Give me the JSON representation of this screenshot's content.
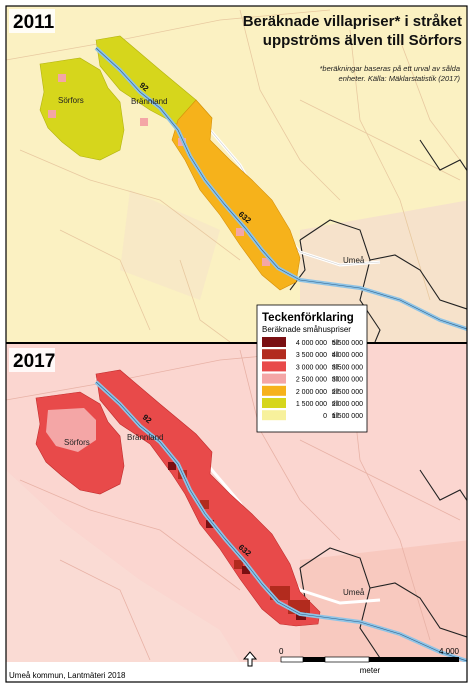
{
  "title": {
    "line1": "Beräknade villapriser* i stråket",
    "line2": "uppströms älven till Sörfors"
  },
  "note": {
    "line1": "*beräkningar baseras på ett urval av sålda",
    "line2": "enheter. Källa: Mäklarstatistik (2017)"
  },
  "panels": [
    {
      "year": "2011"
    },
    {
      "year": "2017"
    }
  ],
  "places": {
    "sorfors": "Sörfors",
    "brannland": "Brännland",
    "umea": "Umeå"
  },
  "roads": {
    "r92": "92",
    "r632": "632"
  },
  "legend": {
    "title": "Teckenförklaring",
    "subtitle": "Beräknade småhuspriser",
    "items": [
      {
        "from": "4 000 000",
        "sep": "till",
        "to": "5 500 000",
        "color": "#7a0f12"
      },
      {
        "from": "3 500 000",
        "sep": "till",
        "to": "4 000 000",
        "color": "#b22b1e"
      },
      {
        "from": "3 000 000",
        "sep": "till",
        "to": "3 500 000",
        "color": "#e84a4a"
      },
      {
        "from": "2 500 000",
        "sep": "till",
        "to": "3 000 000",
        "color": "#f4a6a6"
      },
      {
        "from": "2 000 000",
        "sep": "till",
        "to": "2 500 000",
        "color": "#f6b21b"
      },
      {
        "from": "1 500 000",
        "sep": "till",
        "to": "2 000 000",
        "color": "#d6d61c"
      },
      {
        "from": "0",
        "sep": "till",
        "to": "1 500 000",
        "color": "#f7f19c"
      }
    ]
  },
  "scale": {
    "start": "0",
    "end": "4 000",
    "unit": "meter"
  },
  "north_arrow": "north-arrow-icon",
  "credit": "Umeå kommun, Lantmäteri 2018",
  "colors": {
    "background_2011": "#fbf1c2",
    "background_2017": "#fbd6d0",
    "water": "#8fc4e6",
    "road": "#ffffff"
  }
}
